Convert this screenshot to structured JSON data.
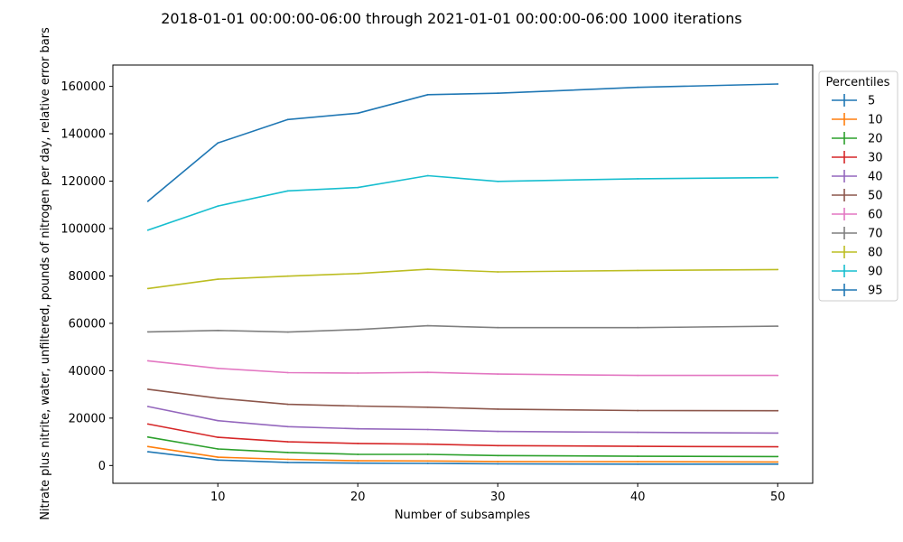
{
  "chart_data": {
    "type": "line",
    "title": "2018-01-01 00:00:00-06:00 through 2021-01-01 00:00:00-06:00 1000 iterations",
    "xlabel": "Number of subsamples",
    "ylabel": "Nitrate plus nitrite, water, unfiltered, pounds of nitrogen per day, relative error bars",
    "xlim": [
      2.5,
      52.5
    ],
    "ylim": [
      -7500,
      169000
    ],
    "x_ticks": [
      10,
      20,
      30,
      40,
      50
    ],
    "y_ticks": [
      0,
      20000,
      40000,
      60000,
      80000,
      100000,
      120000,
      140000,
      160000
    ],
    "x": [
      5,
      10,
      15,
      20,
      25,
      30,
      40,
      50
    ],
    "legend": {
      "title": "Percentiles",
      "placement": "outside-right"
    },
    "grid": false,
    "series": [
      {
        "name": "5",
        "color": "#1f77b4",
        "values": [
          5800,
          2300,
          1300,
          1000,
          900,
          700,
          600,
          600
        ]
      },
      {
        "name": "10",
        "color": "#ff7f0e",
        "values": [
          8000,
          3500,
          2600,
          2000,
          1900,
          1700,
          1600,
          1500
        ]
      },
      {
        "name": "20",
        "color": "#2ca02c",
        "values": [
          12000,
          7000,
          5500,
          4700,
          4700,
          4200,
          3900,
          3800
        ]
      },
      {
        "name": "30",
        "color": "#d62728",
        "values": [
          17500,
          11900,
          10000,
          9300,
          9000,
          8400,
          8100,
          7900
        ]
      },
      {
        "name": "40",
        "color": "#9467bd",
        "values": [
          24900,
          18900,
          16400,
          15500,
          15200,
          14400,
          14000,
          13700
        ]
      },
      {
        "name": "50",
        "color": "#8c564b",
        "values": [
          32200,
          28400,
          25800,
          25100,
          24600,
          23800,
          23200,
          23100
        ]
      },
      {
        "name": "60",
        "color": "#e377c2",
        "values": [
          44200,
          41000,
          39200,
          39000,
          39300,
          38600,
          38000,
          38000
        ]
      },
      {
        "name": "70",
        "color": "#7f7f7f",
        "values": [
          56400,
          57000,
          56300,
          57400,
          59000,
          58200,
          58200,
          58800
        ]
      },
      {
        "name": "80",
        "color": "#bcbd22",
        "values": [
          74700,
          78600,
          79900,
          81000,
          82800,
          81700,
          82300,
          82700
        ]
      },
      {
        "name": "90",
        "color": "#17becf",
        "values": [
          99300,
          109500,
          115900,
          117300,
          122300,
          119900,
          121000,
          121500
        ]
      },
      {
        "name": "95",
        "color": "#1f77b4",
        "values": [
          111500,
          136100,
          146000,
          148700,
          156500,
          157100,
          159600,
          161000
        ]
      }
    ]
  }
}
